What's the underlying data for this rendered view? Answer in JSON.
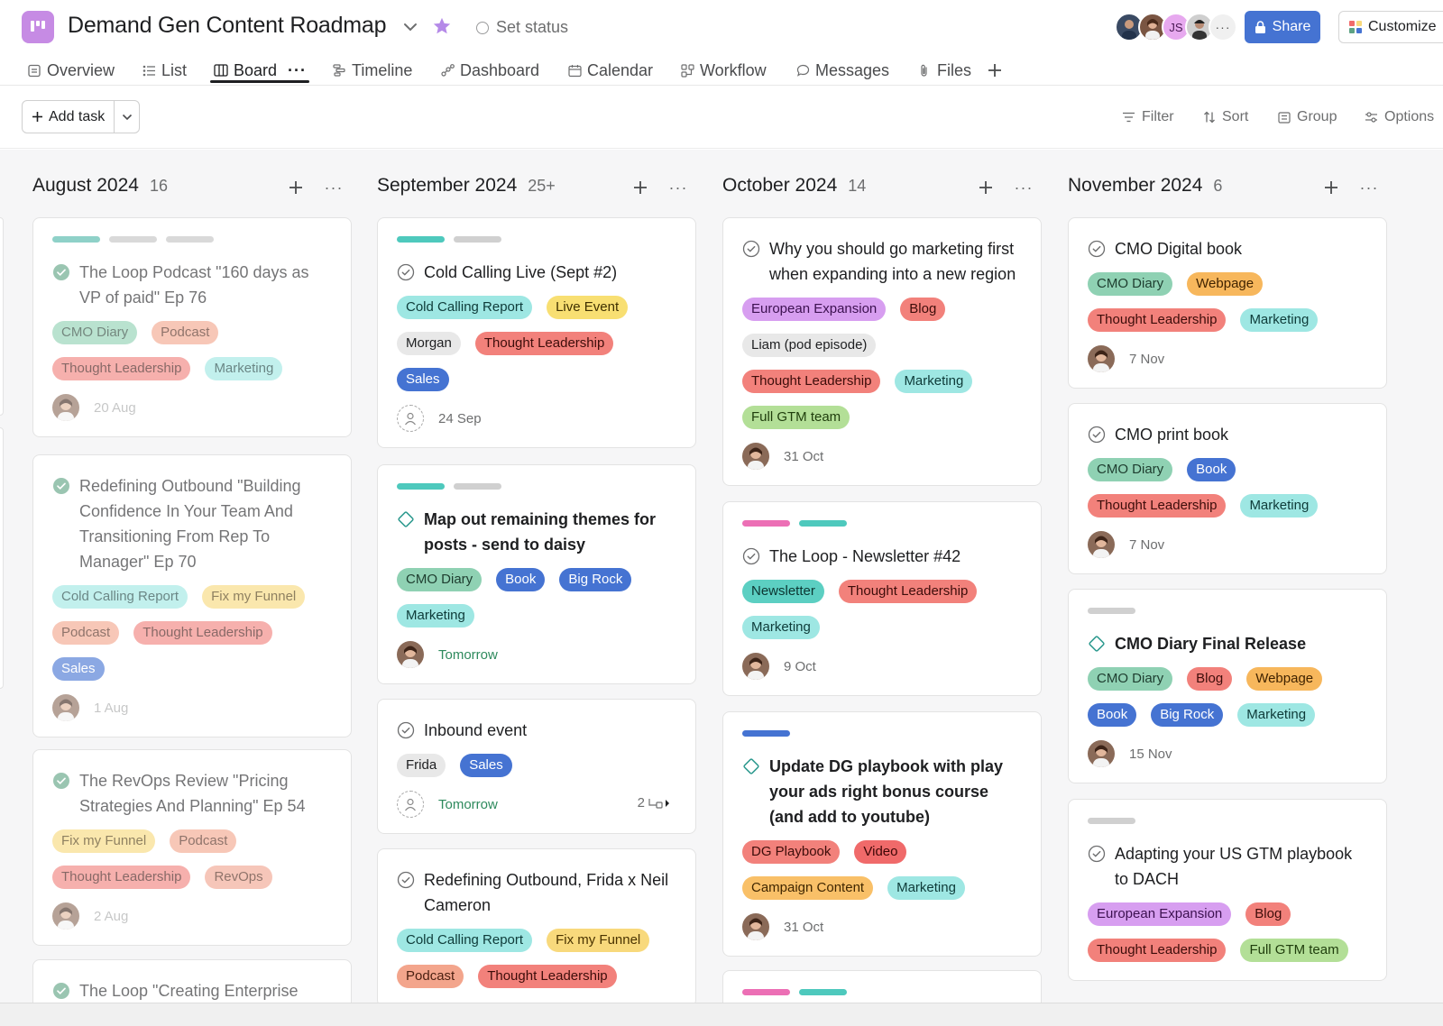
{
  "project": {
    "title": "Demand Gen Content Roadmap",
    "set_status": "Set status",
    "share_label": "Share",
    "customize_label": "Customize",
    "avatar_initials": "JS",
    "more_avatars": "···"
  },
  "tabs": [
    {
      "label": "Overview",
      "icon": "overview-icon"
    },
    {
      "label": "List",
      "icon": "list-icon"
    },
    {
      "label": "Board",
      "icon": "board-icon"
    },
    {
      "label": "Timeline",
      "icon": "timeline-icon"
    },
    {
      "label": "Dashboard",
      "icon": "dashboard-icon"
    },
    {
      "label": "Calendar",
      "icon": "calendar-icon"
    },
    {
      "label": "Workflow",
      "icon": "workflow-icon"
    },
    {
      "label": "Messages",
      "icon": "messages-icon"
    },
    {
      "label": "Files",
      "icon": "files-icon"
    }
  ],
  "active_tab": "Board",
  "toolbar": {
    "add_task": "Add task",
    "filter": "Filter",
    "sort": "Sort",
    "group": "Group",
    "options": "Options"
  },
  "colors": {
    "accent": "#4573d2",
    "project_icon": "#c68be4",
    "star": "#b58ae8",
    "complete_green": "#5da283"
  },
  "columns": [
    {
      "title": "August 2024",
      "count": "16",
      "cards": [
        {
          "stripes": [
            "#8fd1c8",
            "#d9d9d9",
            "#d9d9d9"
          ],
          "title": "The Loop Podcast \"160 days as VP of paid\" Ep 76",
          "complete": true,
          "milestone": false,
          "bold": false,
          "dim": true,
          "tags": [
            [
              "CMO Diary",
              "t-cmo"
            ],
            [
              "Podcast",
              "t-podcast"
            ],
            [
              "Thought Leadership",
              "t-tl"
            ],
            [
              "Marketing",
              "t-mkt"
            ]
          ],
          "date": "20 Aug",
          "date_green": false,
          "assignee": true
        },
        {
          "stripes": [],
          "title": "Redefining Outbound \"Building Confidence In Your Team And Transitioning From Rep To Manager\" Ep 70",
          "complete": true,
          "milestone": false,
          "bold": false,
          "dim": true,
          "tags": [
            [
              "Cold Calling Report",
              "t-ccr"
            ],
            [
              "Fix my Funnel",
              "t-fmf"
            ],
            [
              "Podcast",
              "t-podcast"
            ],
            [
              "Thought Leadership",
              "t-tl"
            ],
            [
              "Sales",
              "t-sales"
            ]
          ],
          "date": "1 Aug",
          "date_green": false,
          "assignee": true
        },
        {
          "stripes": [],
          "title": "The RevOps Review \"Pricing Strategies And Planning\" Ep 54",
          "complete": true,
          "milestone": false,
          "bold": false,
          "dim": true,
          "tags": [
            [
              "Fix my Funnel",
              "t-fmf"
            ],
            [
              "Podcast",
              "t-podcast"
            ],
            [
              "Thought Leadership",
              "t-tl"
            ],
            [
              "RevOps",
              "t-revops"
            ]
          ],
          "date": "2 Aug",
          "date_green": false,
          "assignee": true
        },
        {
          "stripes": [],
          "title": "The Loop \"Creating Enterprise",
          "complete": true,
          "milestone": false,
          "bold": false,
          "dim": true,
          "tags": [],
          "date": "",
          "date_green": false,
          "assignee": false
        }
      ]
    },
    {
      "title": "September 2024",
      "count": "25+",
      "cards": [
        {
          "stripes": [
            "#4ec9bd",
            "#d0d0d0"
          ],
          "title": "Cold Calling Live (Sept #2)",
          "complete": false,
          "milestone": false,
          "bold": false,
          "dim": false,
          "tags": [
            [
              "Cold Calling Report",
              "t-ccr"
            ],
            [
              "Live Event",
              "t-live"
            ],
            [
              "Morgan",
              "t-gray"
            ],
            [
              "Thought Leadership",
              "t-tl"
            ],
            [
              "Sales",
              "t-sales"
            ]
          ],
          "date": "24 Sep",
          "date_green": false,
          "assignee": false
        },
        {
          "stripes": [
            "#4ec9bd",
            "#d0d0d0"
          ],
          "title": "Map out remaining themes for posts - send to daisy",
          "complete": false,
          "milestone": true,
          "bold": true,
          "dim": false,
          "tags": [
            [
              "CMO Diary",
              "t-cmo"
            ],
            [
              "Book",
              "t-book"
            ],
            [
              "Big Rock",
              "t-bigrock"
            ],
            [
              "Marketing",
              "t-mkt"
            ]
          ],
          "date": "Tomorrow",
          "date_green": true,
          "assignee": true
        },
        {
          "stripes": [],
          "title": "Inbound event",
          "complete": false,
          "milestone": false,
          "bold": false,
          "dim": false,
          "tags": [
            [
              "Frida",
              "t-gray"
            ],
            [
              "Sales",
              "t-sales"
            ]
          ],
          "date": "Tomorrow",
          "date_green": true,
          "assignee": false,
          "subtasks": "2"
        },
        {
          "stripes": [],
          "title": "Redefining Outbound, Frida x Neil Cameron",
          "complete": false,
          "milestone": false,
          "bold": false,
          "dim": false,
          "tags": [
            [
              "Cold Calling Report",
              "t-ccr"
            ],
            [
              "Fix my Funnel",
              "t-fmf"
            ],
            [
              "Podcast",
              "t-podcast"
            ],
            [
              "Thought Leadership",
              "t-tl"
            ]
          ],
          "date": "",
          "date_green": false,
          "assignee": false
        }
      ]
    },
    {
      "title": "October 2024",
      "count": "14",
      "cards": [
        {
          "stripes": [],
          "title": "Why you should go marketing first when expanding into a new region",
          "complete": false,
          "milestone": false,
          "bold": false,
          "dim": false,
          "tags": [
            [
              "European Expansion",
              "t-ee"
            ],
            [
              "Blog",
              "t-blog"
            ],
            [
              "Liam (pod episode)",
              "t-gray"
            ],
            [
              "Thought Leadership",
              "t-tl"
            ],
            [
              "Marketing",
              "t-mkt"
            ],
            [
              "Full GTM team",
              "t-gtm"
            ]
          ],
          "date": "31 Oct",
          "date_green": false,
          "assignee": true
        },
        {
          "stripes": [
            "#ec6fb5",
            "#4ec9bd"
          ],
          "title": "The Loop - Newsletter #42",
          "complete": false,
          "milestone": false,
          "bold": false,
          "dim": false,
          "tags": [
            [
              "Newsletter",
              "t-news"
            ],
            [
              "Thought Leadership",
              "t-tl"
            ],
            [
              "Marketing",
              "t-mkt"
            ]
          ],
          "date": "9 Oct",
          "date_green": false,
          "assignee": true
        },
        {
          "stripes": [
            "#4573d2"
          ],
          "title": "Update DG playbook with play your ads right bonus course (and add to youtube)",
          "complete": false,
          "milestone": true,
          "bold": true,
          "dim": false,
          "tags": [
            [
              "DG Playbook",
              "t-dg"
            ],
            [
              "Video",
              "t-video"
            ],
            [
              "Campaign Content",
              "t-camp"
            ],
            [
              "Marketing",
              "t-mkt"
            ]
          ],
          "date": "31 Oct",
          "date_green": false,
          "assignee": true
        },
        {
          "stripes": [
            "#ec6fb5",
            "#4ec9bd"
          ],
          "title": "",
          "complete": false,
          "milestone": false,
          "bold": false,
          "dim": false,
          "tags": [],
          "date": "",
          "date_green": false,
          "assignee": false
        }
      ]
    },
    {
      "title": "November 2024",
      "count": "6",
      "cards": [
        {
          "stripes": [],
          "title": "CMO Digital book",
          "complete": false,
          "milestone": false,
          "bold": false,
          "dim": false,
          "tags": [
            [
              "CMO Diary",
              "t-cmo"
            ],
            [
              "Webpage",
              "t-web"
            ],
            [
              "Thought Leadership",
              "t-tl"
            ],
            [
              "Marketing",
              "t-mkt"
            ]
          ],
          "date": "7 Nov",
          "date_green": false,
          "assignee": true
        },
        {
          "stripes": [],
          "title": "CMO print book",
          "complete": false,
          "milestone": false,
          "bold": false,
          "dim": false,
          "tags": [
            [
              "CMO Diary",
              "t-cmo"
            ],
            [
              "Book",
              "t-book"
            ],
            [
              "Thought Leadership",
              "t-tl"
            ],
            [
              "Marketing",
              "t-mkt"
            ]
          ],
          "date": "7 Nov",
          "date_green": false,
          "assignee": true
        },
        {
          "stripes": [
            "#d0d0d0"
          ],
          "title": "CMO Diary Final Release",
          "complete": false,
          "milestone": true,
          "bold": true,
          "dim": false,
          "tags": [
            [
              "CMO Diary",
              "t-cmo"
            ],
            [
              "Blog",
              "t-blog"
            ],
            [
              "Webpage",
              "t-web"
            ],
            [
              "Book",
              "t-book"
            ],
            [
              "Big Rock",
              "t-bigrock"
            ],
            [
              "Marketing",
              "t-mkt"
            ]
          ],
          "date": "15 Nov",
          "date_green": false,
          "assignee": true
        },
        {
          "stripes": [
            "#d0d0d0"
          ],
          "title": "Adapting your US GTM playbook to DACH",
          "complete": false,
          "milestone": false,
          "bold": false,
          "dim": false,
          "tags": [
            [
              "European Expansion",
              "t-ee"
            ],
            [
              "Blog",
              "t-blog"
            ],
            [
              "Thought Leadership",
              "t-tl"
            ],
            [
              "Full GTM team",
              "t-gtm"
            ]
          ],
          "date": "",
          "date_green": false,
          "assignee": false
        }
      ]
    }
  ]
}
